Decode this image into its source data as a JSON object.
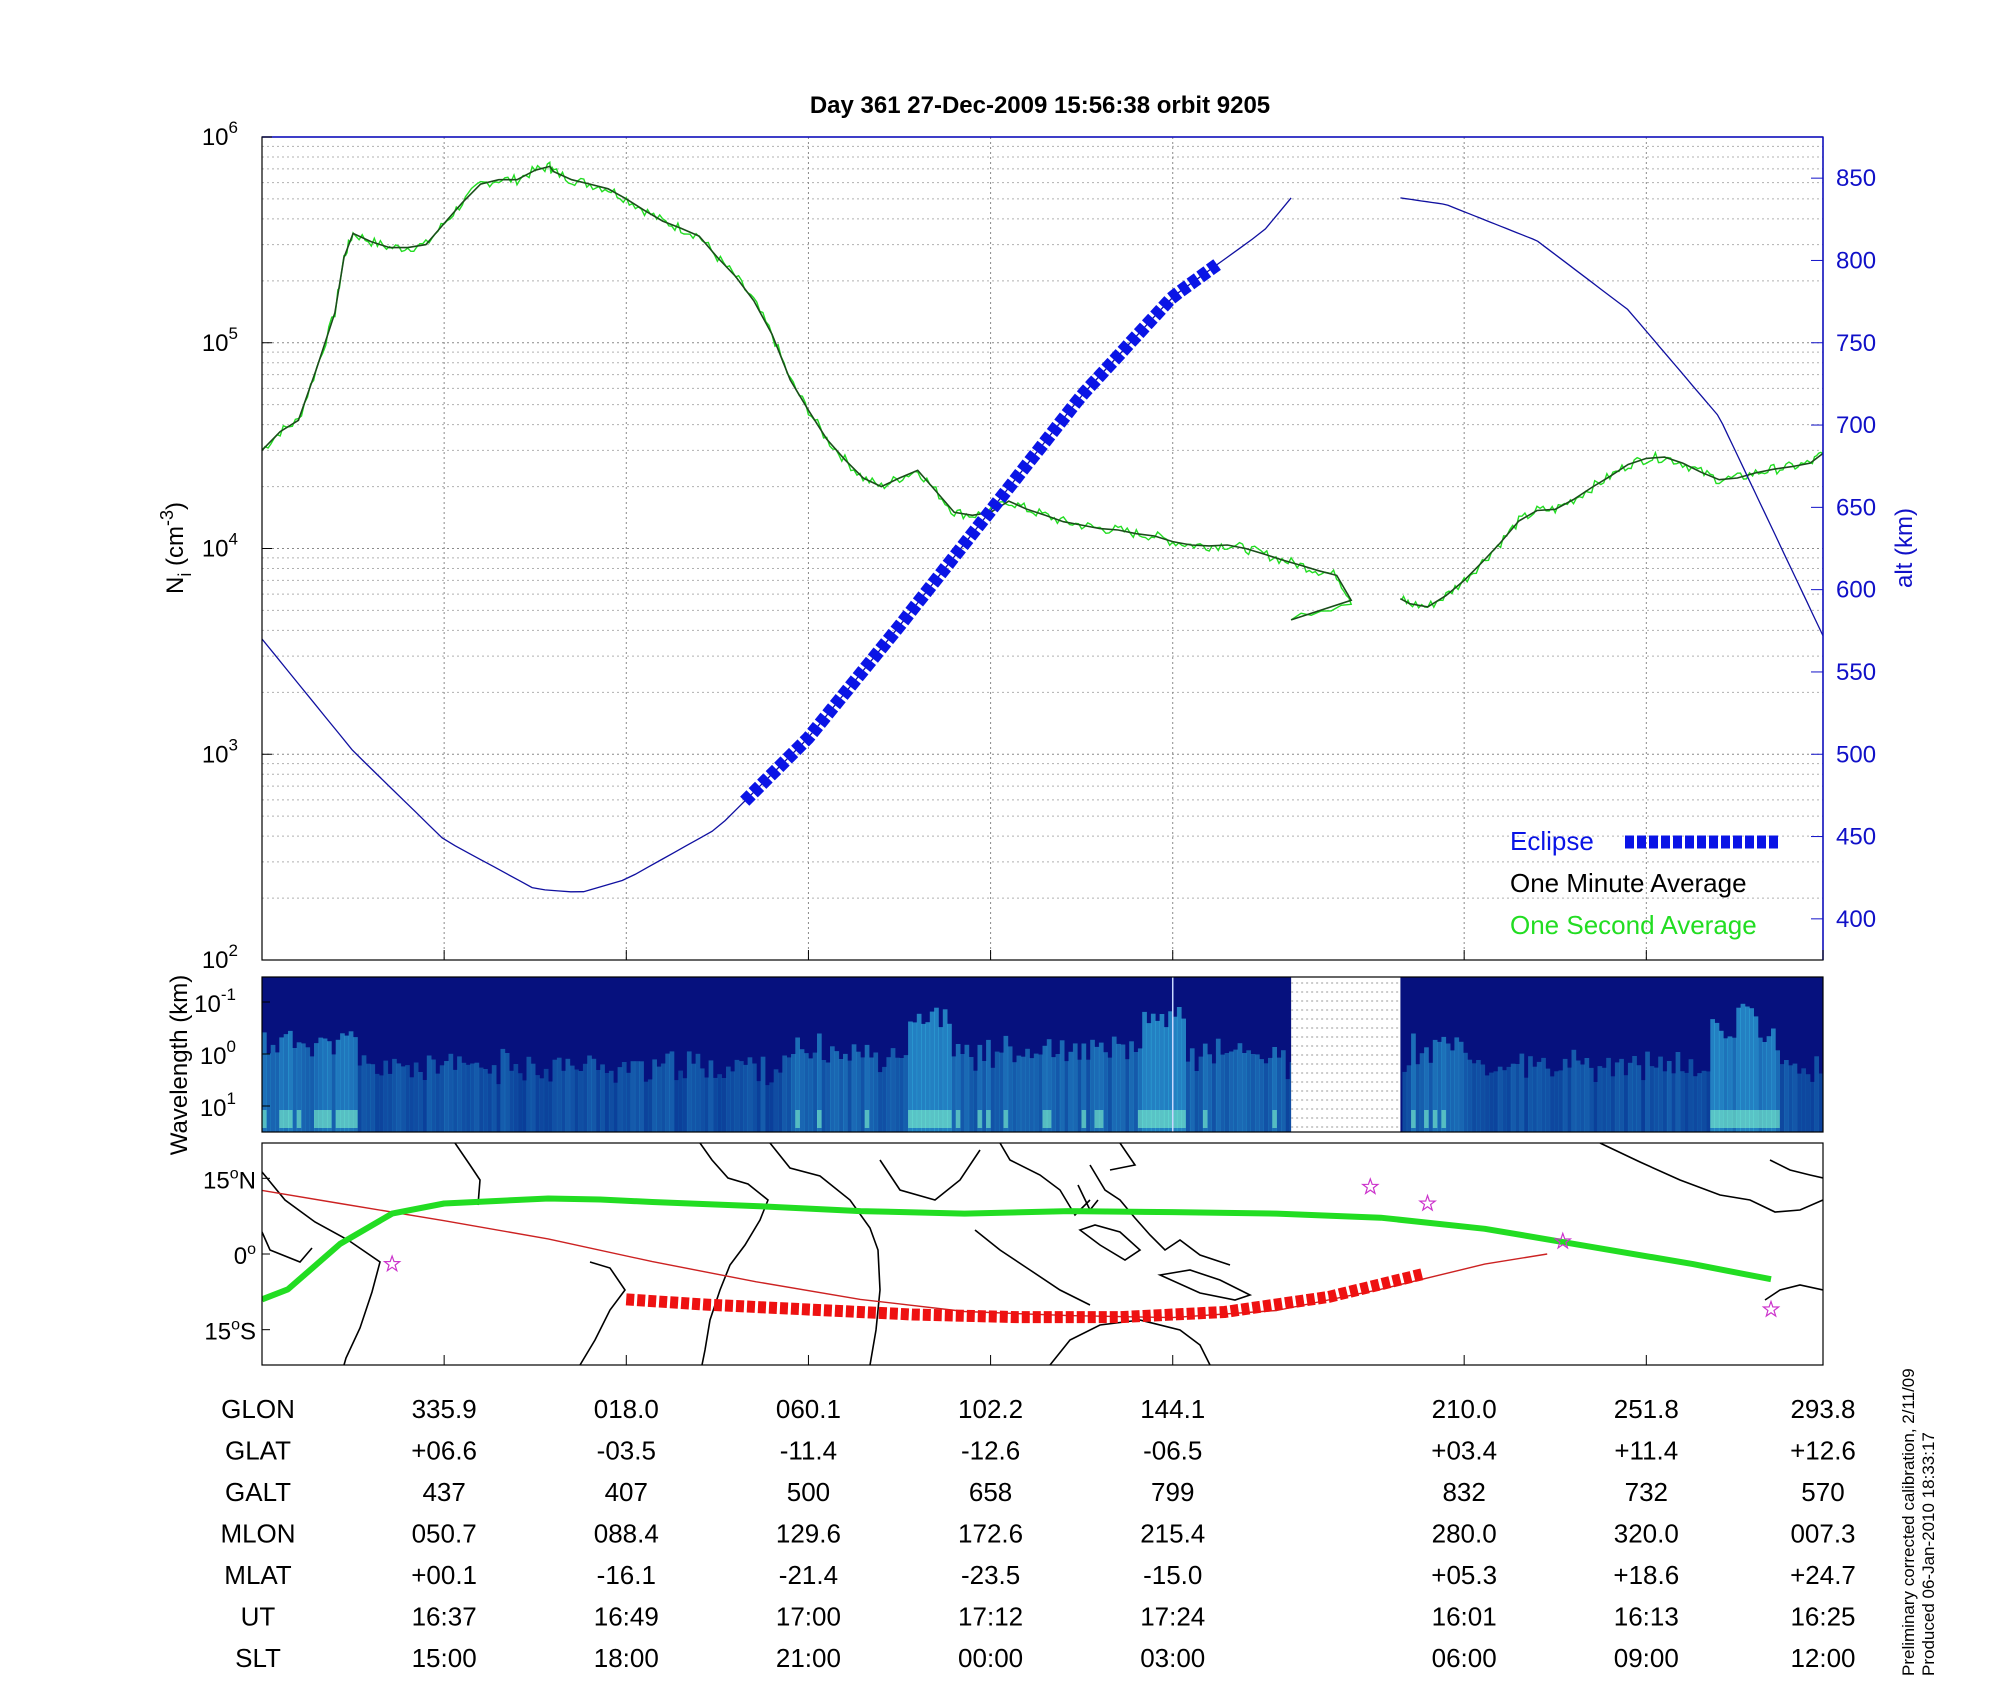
{
  "title": "Day 361  27-Dec-2009 15:56:38   orbit 9205",
  "colors": {
    "one_minute": "#1a4d1a",
    "one_second": "#22dd22",
    "eclipse": "#0a14e6",
    "altitude": "#1010a0",
    "ground_track": "#cc2222",
    "eclipse_track": "#ee1111",
    "magnetic_equator": "#22dd22",
    "spectrogram_bg": "#06117e"
  },
  "chart_data": [
    {
      "type": "line",
      "panel": "ion-density",
      "ylabel": "N",
      "ylabel_sub": "i",
      "ylabel_unit": " (cm",
      "ylabel_unit_sup": "-3",
      "ylabel_close": ")",
      "ylabel_right": "alt (km)",
      "yscale": "log",
      "ylim": [
        100,
        1000000
      ],
      "y_ticks": [
        {
          "base": "10",
          "exp": "2",
          "value": 100
        },
        {
          "base": "10",
          "exp": "3",
          "value": 1000
        },
        {
          "base": "10",
          "exp": "4",
          "value": 10000
        },
        {
          "base": "10",
          "exp": "5",
          "value": 100000
        },
        {
          "base": "10",
          "exp": "6",
          "value": 1000000
        }
      ],
      "y2lim": [
        375,
        875
      ],
      "y2_ticks": [
        "400",
        "450",
        "500",
        "550",
        "600",
        "650",
        "700",
        "750",
        "800",
        "850"
      ],
      "grid": true,
      "legend_position": "bottom-right",
      "legend": [
        "Eclipse",
        "One Minute Average",
        "One Second Average"
      ],
      "x_unit": "minutes into plot window (0-85.7)",
      "series": [
        {
          "name": "One Minute Average",
          "segments": [
            [
              [
                0,
                30000
              ],
              [
                1,
                37000
              ],
              [
                2,
                42000
              ],
              [
                3,
                75000
              ],
              [
                4,
                140000
              ],
              [
                4.5,
                260000
              ],
              [
                5,
                340000
              ],
              [
                6,
                310000
              ],
              [
                7,
                290000
              ],
              [
                8,
                290000
              ],
              [
                9,
                300000
              ],
              [
                10,
                380000
              ],
              [
                11,
                480000
              ],
              [
                12,
                590000
              ],
              [
                13,
                620000
              ],
              [
                14,
                620000
              ],
              [
                15,
                690000
              ],
              [
                15.8,
                720000
              ],
              [
                16,
                680000
              ],
              [
                17,
                620000
              ],
              [
                18,
                590000
              ],
              [
                19,
                560000
              ],
              [
                20,
                500000
              ],
              [
                21,
                440000
              ],
              [
                22,
                390000
              ],
              [
                23,
                360000
              ],
              [
                24,
                330000
              ],
              [
                25,
                260000
              ],
              [
                26,
                210000
              ],
              [
                27,
                160000
              ],
              [
                28,
                110000
              ],
              [
                29,
                66000
              ],
              [
                30,
                47000
              ],
              [
                31,
                34000
              ],
              [
                32,
                27000
              ],
              [
                33,
                22000
              ],
              [
                34,
                20000
              ],
              [
                35,
                22000
              ],
              [
                36,
                24000
              ],
              [
                37,
                19000
              ],
              [
                38,
                15000
              ],
              [
                39,
                14500
              ],
              [
                40,
                15000
              ],
              [
                41,
                17000
              ],
              [
                42,
                15500
              ],
              [
                43,
                14500
              ],
              [
                44,
                13500
              ],
              [
                45,
                13000
              ],
              [
                46,
                12500
              ],
              [
                47,
                12300
              ],
              [
                48,
                11800
              ],
              [
                49,
                11500
              ],
              [
                50,
                10800
              ],
              [
                51,
                10400
              ],
              [
                52,
                10300
              ],
              [
                53,
                10400
              ],
              [
                54,
                10000
              ],
              [
                55,
                9400
              ],
              [
                56,
                8800
              ],
              [
                57,
                8300
              ],
              [
                58,
                7800
              ],
              [
                59,
                7400
              ],
              [
                59.8,
                5600
              ],
              [
                56.5,
                4500
              ]
            ],
            [
              [
                62.5,
                5700
              ],
              [
                63,
                5400
              ],
              [
                64,
                5200
              ],
              [
                65,
                5900
              ],
              [
                66,
                7000
              ],
              [
                67,
                8600
              ],
              [
                68,
                10700
              ],
              [
                69,
                13600
              ],
              [
                70,
                15300
              ],
              [
                71,
                15500
              ],
              [
                72,
                17300
              ],
              [
                73,
                19800
              ],
              [
                74,
                22400
              ],
              [
                75,
                25600
              ],
              [
                76,
                27400
              ],
              [
                77,
                27800
              ],
              [
                78,
                26000
              ],
              [
                79,
                23500
              ],
              [
                80,
                21600
              ],
              [
                81,
                22000
              ],
              [
                82,
                23300
              ],
              [
                83,
                24300
              ],
              [
                84,
                25000
              ],
              [
                85,
                26000
              ],
              [
                85.7,
                29000
              ]
            ]
          ]
        },
        {
          "name": "Altitude",
          "axis": "right",
          "segments": [
            [
              [
                0,
                570
              ],
              [
                5,
                502
              ],
              [
                10,
                448
              ],
              [
                15,
                418
              ],
              [
                17.5,
                416
              ],
              [
                20,
                424
              ],
              [
                25,
                455
              ],
              [
                30,
                510
              ],
              [
                35,
                578
              ],
              [
                40,
                648
              ],
              [
                45,
                718
              ],
              [
                50,
                778
              ],
              [
                55,
                818
              ],
              [
                56.5,
                838
              ]
            ],
            [
              [
                62.5,
                838
              ],
              [
                65,
                834
              ],
              [
                70,
                812
              ],
              [
                75,
                770
              ],
              [
                80,
                705
              ],
              [
                85.7,
                572
              ]
            ]
          ]
        },
        {
          "name": "Eclipse",
          "axis": "right",
          "x_range": [
            26.5,
            52.5
          ]
        }
      ]
    },
    {
      "type": "heatmap",
      "panel": "wavelength-spectrogram",
      "ylabel": "Wavelength (km)",
      "y_ticks": [
        {
          "base": "10",
          "exp": "-1"
        },
        {
          "base": "10",
          "exp": "0"
        },
        {
          "base": "10",
          "exp": "1"
        }
      ],
      "data_gap_minutes": [
        56.5,
        62.5
      ],
      "hotspots_minutes": [
        36.5,
        49.5,
        80.5,
        82
      ]
    },
    {
      "type": "line",
      "panel": "map",
      "y_ticks": [
        {
          "value": "15",
          "unit": "N"
        },
        {
          "value": "0",
          "unit": ""
        },
        {
          "value": "15",
          "unit": "S"
        }
      ],
      "degree_symbol": "o",
      "xlim_lon": [
        -75,
        225
      ],
      "ylim_lat": [
        -22,
        22
      ],
      "series": [
        {
          "name": "Ground track",
          "lon": [
            -75,
            -60,
            -40,
            -20,
            0,
            20,
            40,
            60,
            80,
            100,
            120,
            140,
            160,
            172
          ],
          "lat": [
            12.6,
            10,
            6.6,
            3,
            -1.5,
            -5.5,
            -9,
            -11.4,
            -12.2,
            -12.6,
            -11.2,
            -7,
            -2,
            0
          ]
        },
        {
          "name": "Magnetic equator",
          "lon": [
            -75,
            -70,
            -60,
            -50,
            -40,
            -30,
            -20,
            -10,
            0,
            20,
            40,
            60,
            80,
            100,
            120,
            140,
            160,
            180,
            200,
            210,
            215
          ],
          "lat": [
            -9,
            -7,
            2,
            8,
            10,
            10.5,
            11,
            10.8,
            10.3,
            9.5,
            8.5,
            8,
            8.5,
            8.3,
            8,
            7.2,
            5,
            1.5,
            -2,
            -4,
            -5
          ]
        },
        {
          "name": "Eclipse track",
          "lon": [
            -5,
            10,
            30,
            50,
            70,
            90,
            110,
            130,
            140,
            148
          ],
          "lat": [
            -9,
            -10,
            -11,
            -12,
            -12.5,
            -12.5,
            -11.5,
            -8.5,
            -6,
            -4
          ]
        }
      ],
      "stars": [
        [
          -50,
          -2
        ],
        [
          138,
          13.3
        ],
        [
          149,
          10
        ],
        [
          175,
          2.5
        ],
        [
          215,
          -11
        ]
      ]
    }
  ],
  "table": {
    "rows": [
      {
        "label": "GLON",
        "values": [
          "335.9",
          "018.0",
          "060.1",
          "102.2",
          "144.1",
          "210.0",
          "251.8",
          "293.8"
        ]
      },
      {
        "label": "GLAT",
        "values": [
          "+06.6",
          "-03.5",
          "-11.4",
          "-12.6",
          "-06.5",
          "+03.4",
          "+11.4",
          "+12.6"
        ]
      },
      {
        "label": "GALT",
        "values": [
          "437",
          "407",
          "500",
          "658",
          "799",
          "832",
          "732",
          "570"
        ]
      },
      {
        "label": "MLON",
        "values": [
          "050.7",
          "088.4",
          "129.6",
          "172.6",
          "215.4",
          "280.0",
          "320.0",
          "007.3"
        ]
      },
      {
        "label": "MLAT",
        "values": [
          "+00.1",
          "-16.1",
          "-21.4",
          "-23.5",
          "-15.0",
          "+05.3",
          "+18.6",
          "+24.7"
        ]
      },
      {
        "label": "UT",
        "values": [
          "16:37",
          "16:49",
          "17:00",
          "17:12",
          "17:24",
          "16:01",
          "16:13",
          "16:25"
        ]
      },
      {
        "label": "SLT",
        "values": [
          "15:00",
          "18:00",
          "21:00",
          "00:00",
          "03:00",
          "06:00",
          "09:00",
          "12:00"
        ]
      }
    ],
    "tick_minutes": [
      10,
      20,
      30,
      40,
      50,
      66,
      76,
      85.7
    ]
  },
  "footnotes": [
    "Preliminary corrected calibration, 2/11/09",
    "Produced 06-Jan-2010 18:33:17"
  ]
}
